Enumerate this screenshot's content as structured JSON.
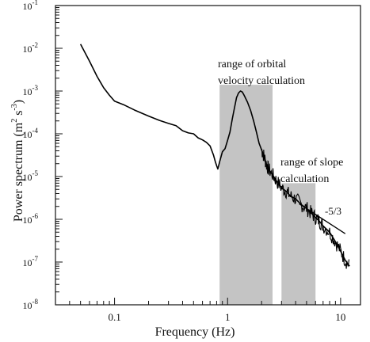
{
  "chart_data": {
    "type": "line",
    "title": "",
    "xlabel": "Frequency (Hz)",
    "ylabel": "Power spectrum (m² s⁻³)",
    "ylabel_parts": {
      "text": "Power spectrum (m",
      "exp1": "2",
      "mid": " s",
      "exp2": "-3",
      "close": ")"
    },
    "x_scale": "log",
    "y_scale": "log",
    "xlim": [
      0.03,
      15
    ],
    "ylim": [
      1e-08,
      0.1
    ],
    "grid": false,
    "x_ticks": [
      {
        "value": 0.1,
        "label": "0.1"
      },
      {
        "value": 1,
        "label": "1"
      },
      {
        "value": 10,
        "label": "10"
      }
    ],
    "y_ticks": [
      {
        "value": 1e-08,
        "mantissa": "10",
        "exponent": "-8"
      },
      {
        "value": 1e-07,
        "mantissa": "10",
        "exponent": "-7"
      },
      {
        "value": 1e-06,
        "mantissa": "10",
        "exponent": "-6"
      },
      {
        "value": 1e-05,
        "mantissa": "10",
        "exponent": "-5"
      },
      {
        "value": 0.0001,
        "mantissa": "10",
        "exponent": "-4"
      },
      {
        "value": 0.001,
        "mantissa": "10",
        "exponent": "-3"
      },
      {
        "value": 0.01,
        "mantissa": "10",
        "exponent": "-2"
      },
      {
        "value": 0.1,
        "mantissa": "10",
        "exponent": "-1"
      }
    ],
    "shaded_regions": [
      {
        "name": "orbital-velocity-range",
        "x_range": [
          0.85,
          2.5
        ],
        "y_range": [
          1e-08,
          0.0014
        ],
        "color": "#c4c4c4",
        "label_lines": [
          "range of orbital",
          "velocity calculation"
        ]
      },
      {
        "name": "slope-range",
        "x_range": [
          3.0,
          6.0
        ],
        "y_range": [
          1e-08,
          7e-06
        ],
        "color": "#c4c4c4",
        "label_lines": [
          "range of slope",
          "calculation"
        ]
      }
    ],
    "reference_line": {
      "label": "-5/3",
      "x": [
        4.3,
        11
      ],
      "y": [
        2.3e-06,
        4.6e-07
      ]
    },
    "series": [
      {
        "color": "#000000",
        "points": [
          [
            0.05,
            0.0125
          ],
          [
            0.06,
            0.005
          ],
          [
            0.07,
            0.0022
          ],
          [
            0.08,
            0.0012
          ],
          [
            0.09,
            0.0008
          ],
          [
            0.1,
            0.00058
          ],
          [
            0.12,
            0.00048
          ],
          [
            0.15,
            0.00036
          ],
          [
            0.2,
            0.00026
          ],
          [
            0.25,
            0.000205
          ],
          [
            0.3,
            0.000175
          ],
          [
            0.35,
            0.000155
          ],
          [
            0.4,
            0.000118
          ],
          [
            0.45,
            0.000105
          ],
          [
            0.5,
            0.0001
          ],
          [
            0.55,
            8e-05
          ],
          [
            0.6,
            7.2e-05
          ],
          [
            0.65,
            6.3e-05
          ],
          [
            0.7,
            5.2e-05
          ],
          [
            0.75,
            3.2e-05
          ],
          [
            0.78,
            2.2e-05
          ],
          [
            0.8,
            1.8e-05
          ],
          [
            0.82,
            1.5e-05
          ],
          [
            0.85,
            2.2e-05
          ],
          [
            0.9,
            3.8e-05
          ],
          [
            0.95,
            4.5e-05
          ],
          [
            1.0,
            7e-05
          ],
          [
            1.05,
            0.00011
          ],
          [
            1.1,
            0.00022
          ],
          [
            1.15,
            0.0004
          ],
          [
            1.2,
            0.0007
          ],
          [
            1.25,
            0.0009
          ],
          [
            1.3,
            0.001
          ],
          [
            1.35,
            0.00095
          ],
          [
            1.4,
            0.0008
          ],
          [
            1.5,
            0.00055
          ],
          [
            1.6,
            0.00035
          ],
          [
            1.7,
            0.0002
          ],
          [
            1.8,
            0.00011
          ],
          [
            1.9,
            6e-05
          ],
          [
            2.0,
            4.2e-05
          ],
          [
            2.1,
            3e-05
          ],
          [
            2.2,
            2e-05
          ],
          [
            2.3,
            1.5e-05
          ],
          [
            2.5,
            1.1e-05
          ],
          [
            2.7,
            8e-06
          ],
          [
            3.0,
            5.5e-06
          ],
          [
            3.3,
            4.5e-06
          ],
          [
            3.6,
            3.5e-06
          ],
          [
            4.0,
            3e-06
          ],
          [
            4.5,
            2.2e-06
          ],
          [
            5.0,
            1.8e-06
          ],
          [
            5.5,
            1.4e-06
          ],
          [
            6.0,
            1.1e-06
          ],
          [
            6.5,
            9e-07
          ],
          [
            7.0,
            7e-07
          ],
          [
            8.0,
            5e-07
          ],
          [
            9.0,
            3e-07
          ],
          [
            10.0,
            1.8e-07
          ],
          [
            11.0,
            1.1e-07
          ],
          [
            12.0,
            8e-08
          ]
        ]
      }
    ]
  }
}
